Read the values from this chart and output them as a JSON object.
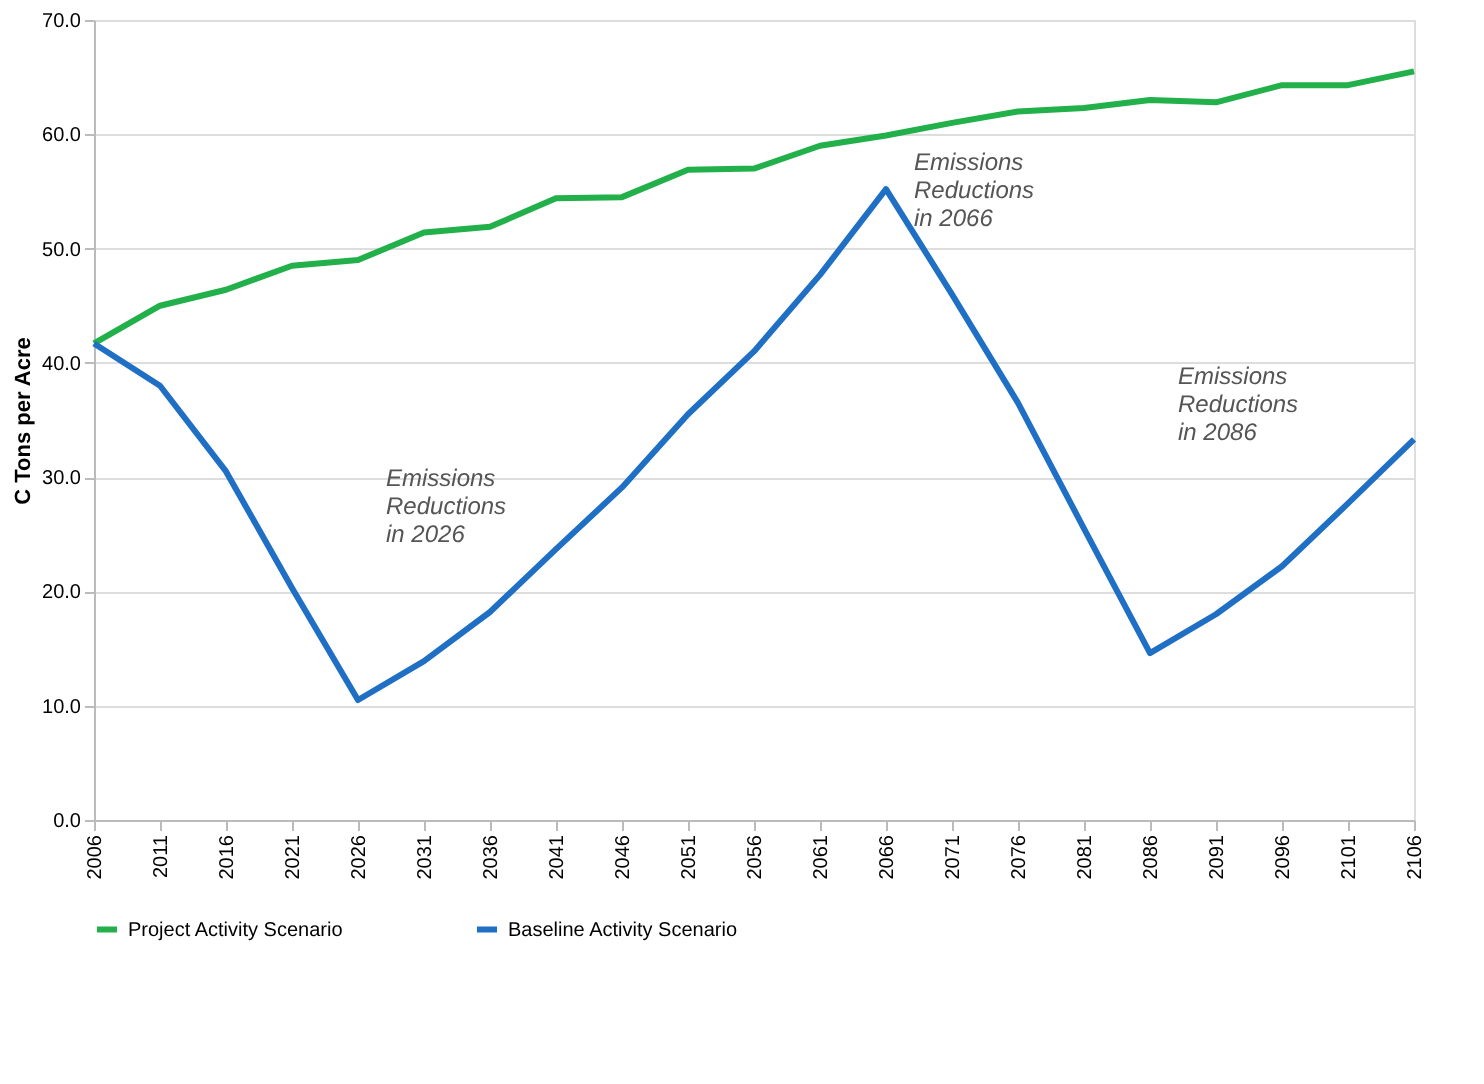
{
  "chart_data": {
    "type": "line",
    "ylabel": "C Tons per Acre",
    "categories": [
      "2006",
      "2011",
      "2016",
      "2021",
      "2026",
      "2031",
      "2036",
      "2041",
      "2046",
      "2051",
      "2056",
      "2061",
      "2066",
      "2071",
      "2076",
      "2081",
      "2086",
      "2091",
      "2096",
      "2101",
      "2106"
    ],
    "series": [
      {
        "name": "Project Activity Scenario",
        "color": "#22b04a",
        "values": [
          41.7,
          45.0,
          46.4,
          48.5,
          49.0,
          51.4,
          51.9,
          54.4,
          54.5,
          56.9,
          57.0,
          59.0,
          59.9,
          61.0,
          62.0,
          62.3,
          63.0,
          62.8,
          64.3,
          64.3,
          65.5
        ]
      },
      {
        "name": "Baseline Activity Scenario",
        "color": "#1f6fc5",
        "values": [
          41.7,
          38.0,
          30.5,
          20.3,
          10.5,
          13.9,
          18.2,
          23.7,
          29.1,
          35.5,
          41.0,
          47.7,
          55.2,
          46.0,
          36.5,
          25.5,
          14.6,
          18.0,
          22.2,
          27.7,
          33.3
        ]
      }
    ],
    "ylim": [
      0,
      70
    ],
    "yticks": [
      {
        "value": 0,
        "label": "0.0"
      },
      {
        "value": 10,
        "label": "10.0"
      },
      {
        "value": 20,
        "label": "20.0"
      },
      {
        "value": 30,
        "label": "30.0"
      },
      {
        "value": 40,
        "label": "40.0"
      },
      {
        "value": 50,
        "label": "50.0"
      },
      {
        "value": 60,
        "label": "60.0"
      },
      {
        "value": 70,
        "label": "70.0"
      }
    ],
    "annotations": [
      "Emissions\nReductions\nin 2026",
      "Emissions\nReductions\nin 2066",
      "Emissions\nReductions\nin 2086"
    ],
    "grid": "y",
    "legend": "bottom",
    "marker": "none",
    "line_style": "solid"
  }
}
